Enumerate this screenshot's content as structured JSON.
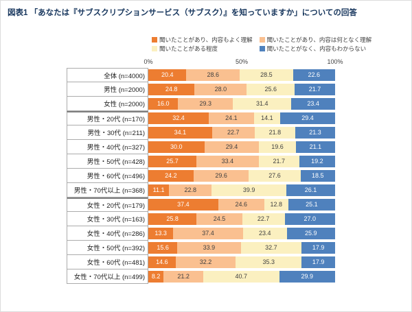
{
  "chart_data": {
    "type": "bar",
    "orientation": "horizontal",
    "stacked": true,
    "title": "図表1 「あなたは『サブスクリプションサービス（サブスク）』を知っていますか」についての回答",
    "xlabel": "",
    "ylabel": "",
    "xlim": [
      0,
      100
    ],
    "axis_ticks": [
      "0%",
      "50%",
      "100%"
    ],
    "legend_position": "top",
    "value_format": "percent-one-decimal",
    "series": [
      {
        "name": "聞いたことがあり、内容もよく理解",
        "color": "#ED7D31",
        "label_color": "#FFFFFF"
      },
      {
        "name": "聞いたことがあり、内容は何となく理解",
        "color": "#FAC090",
        "label_color": "#404040"
      },
      {
        "name": "聞いたことがある程度",
        "color": "#FBF0C0",
        "label_color": "#404040"
      },
      {
        "name": "聞いたことがなく、内容もわからない",
        "color": "#4F81BD",
        "label_color": "#FFFFFF"
      }
    ],
    "groups": [
      {
        "name": "total",
        "rows": [
          {
            "label": "全体 (n=4000)",
            "values": [
              20.4,
              28.6,
              28.5,
              22.6
            ]
          },
          {
            "label": "男性 (n=2000)",
            "values": [
              24.8,
              28.0,
              25.6,
              21.7
            ]
          },
          {
            "label": "女性 (n=2000)",
            "values": [
              16.0,
              29.3,
              31.4,
              23.4
            ]
          }
        ]
      },
      {
        "name": "male-by-age",
        "rows": [
          {
            "label": "男性・20代 (n=170)",
            "values": [
              32.4,
              24.1,
              14.1,
              29.4
            ]
          },
          {
            "label": "男性・30代 (n=211)",
            "values": [
              34.1,
              22.7,
              21.8,
              21.3
            ]
          },
          {
            "label": "男性・40代 (n=327)",
            "values": [
              30.0,
              29.4,
              19.6,
              21.1
            ]
          },
          {
            "label": "男性・50代 (n=428)",
            "values": [
              25.7,
              33.4,
              21.7,
              19.2
            ]
          },
          {
            "label": "男性・60代 (n=496)",
            "values": [
              24.2,
              29.6,
              27.6,
              18.5
            ]
          },
          {
            "label": "男性・70代以上 (n=368)",
            "values": [
              11.1,
              22.8,
              39.9,
              26.1
            ]
          }
        ]
      },
      {
        "name": "female-by-age",
        "rows": [
          {
            "label": "女性・20代 (n=179)",
            "values": [
              37.4,
              24.6,
              12.8,
              25.1
            ]
          },
          {
            "label": "女性・30代 (n=163)",
            "values": [
              25.8,
              24.5,
              22.7,
              27.0
            ]
          },
          {
            "label": "女性・40代 (n=286)",
            "values": [
              13.3,
              37.4,
              23.4,
              25.9
            ]
          },
          {
            "label": "女性・50代 (n=392)",
            "values": [
              15.6,
              33.9,
              32.7,
              17.9
            ]
          },
          {
            "label": "女性・60代 (n=481)",
            "values": [
              14.6,
              32.2,
              35.3,
              17.9
            ]
          },
          {
            "label": "女性・70代以上 (n=499)",
            "values": [
              8.2,
              21.2,
              40.7,
              29.9
            ]
          }
        ]
      }
    ]
  }
}
